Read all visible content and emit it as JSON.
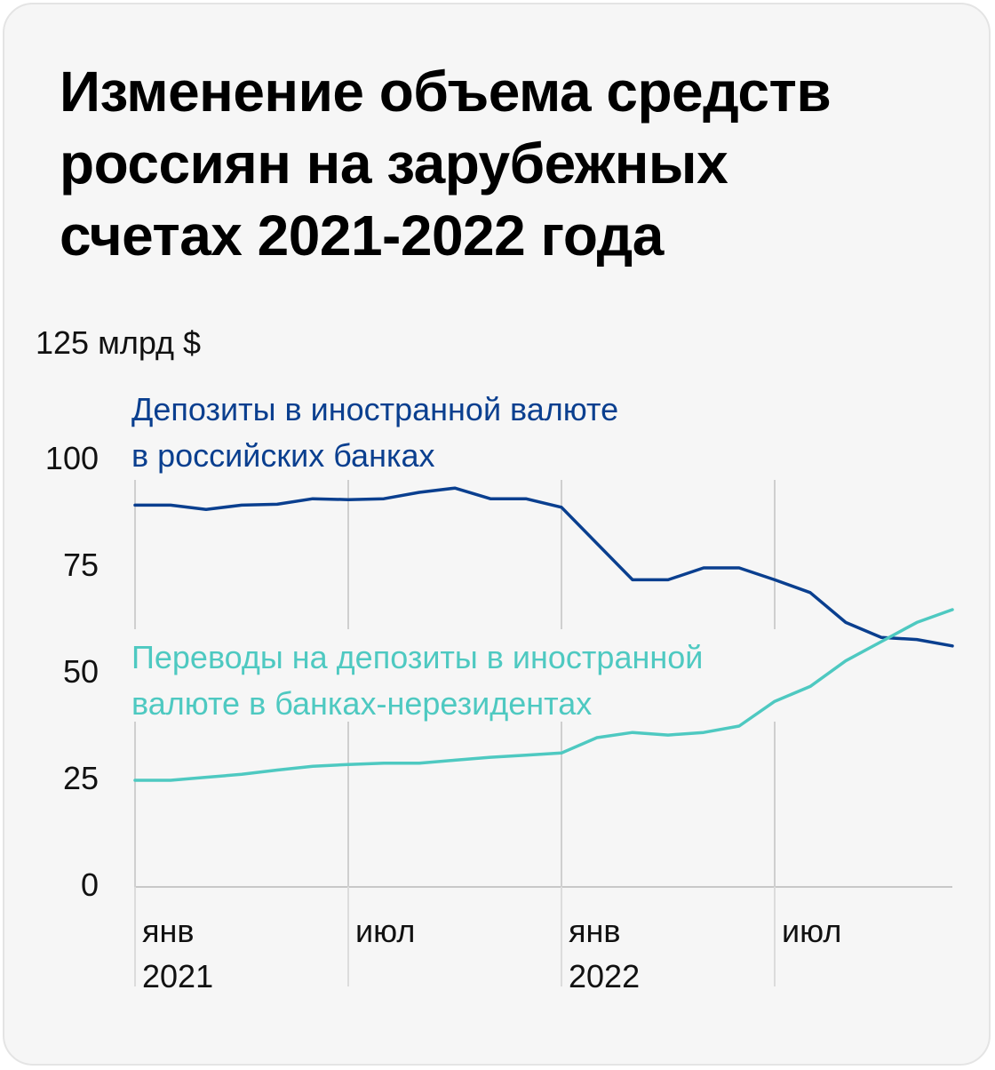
{
  "title_lines": [
    "Изменение объема средств",
    "россиян на зарубежных",
    "счетах 2021-2022 года"
  ],
  "chart_data": {
    "type": "line",
    "title": "Изменение объема средств россиян на зарубежных счетах 2021-2022 года",
    "ylabel": "",
    "unit_label": "125 млрд $",
    "ylim": [
      0,
      125
    ],
    "yticks": [
      {
        "value": 125,
        "label": "125 млрд $"
      },
      {
        "value": 100,
        "label": "100"
      },
      {
        "value": 75,
        "label": "75"
      },
      {
        "value": 50,
        "label": "50"
      },
      {
        "value": 25,
        "label": "25"
      },
      {
        "value": 0,
        "label": "0"
      }
    ],
    "xticks": [
      {
        "index": 0,
        "month": "янв",
        "year": "2021"
      },
      {
        "index": 6,
        "month": "июл",
        "year": ""
      },
      {
        "index": 12,
        "month": "янв",
        "year": "2022"
      },
      {
        "index": 18,
        "month": "июл",
        "year": ""
      }
    ],
    "x": [
      "2021-01",
      "2021-02",
      "2021-03",
      "2021-04",
      "2021-05",
      "2021-06",
      "2021-07",
      "2021-08",
      "2021-09",
      "2021-10",
      "2021-11",
      "2021-12",
      "2022-01",
      "2022-02",
      "2022-03",
      "2022-04",
      "2022-05",
      "2022-06",
      "2022-07",
      "2022-08",
      "2022-09",
      "2022-10",
      "2022-11",
      "2022-12"
    ],
    "series": [
      {
        "name": "Депозиты в иностранной валюте в российских банках",
        "label_lines": [
          "Депозиты в иностранной валюте",
          "в российских банках"
        ],
        "color": "#0a3f8f",
        "values": [
          89.5,
          89.5,
          88.5,
          89.5,
          89.7,
          91.0,
          90.8,
          91.0,
          92.5,
          93.5,
          91.0,
          91.0,
          89.0,
          80.5,
          72.0,
          72.0,
          74.8,
          74.8,
          72.0,
          69.0,
          62.0,
          58.5,
          58.0,
          56.5
        ]
      },
      {
        "name": "Переводы на депозиты в иностранной валюте в банках-нерезидентах",
        "label_lines": [
          "Переводы на депозиты в иностранной",
          "валюте в банках-нерезидентах"
        ],
        "color": "#4ec9c1",
        "values": [
          25.0,
          25.0,
          25.7,
          26.4,
          27.4,
          28.3,
          28.7,
          29.0,
          29.0,
          29.7,
          30.4,
          30.9,
          31.4,
          35.0,
          36.2,
          35.6,
          36.2,
          37.7,
          43.5,
          47.0,
          53.0,
          57.5,
          62.0,
          65.0
        ]
      }
    ]
  }
}
